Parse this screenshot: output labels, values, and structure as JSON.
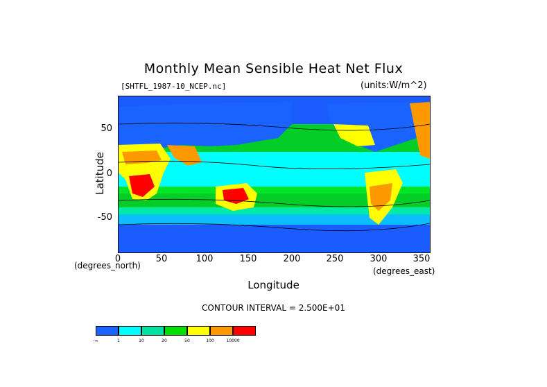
{
  "title": "Monthly Mean Sensible Heat Net Flux",
  "file_label": "[SHTFL_1987-10_NCEP.nc]",
  "units_label": "(units:W/m^2)",
  "y_axis": {
    "label": "Latitude",
    "ticks": [
      "50",
      "0",
      "-50"
    ],
    "unit": "(degrees_north)"
  },
  "x_axis": {
    "label": "Longitude",
    "ticks": [
      "0",
      "50",
      "100",
      "150",
      "200",
      "250",
      "300",
      "350"
    ],
    "unit": "(degrees_east)"
  },
  "contour_text": "CONTOUR INTERVAL = 2.500E+01",
  "legend": {
    "colors": [
      "#1a63ff",
      "#00ffff",
      "#00e0a0",
      "#00e000",
      "#ffff00",
      "#ff9900",
      "#ff0000"
    ],
    "labels": [
      "-∞",
      "1",
      "10",
      "20",
      "50",
      "100",
      "10000"
    ]
  },
  "map": {
    "ocean_color": "#00e8f0",
    "polar_color": "#1a5cff",
    "land_low_color": "#1a63ff"
  }
}
